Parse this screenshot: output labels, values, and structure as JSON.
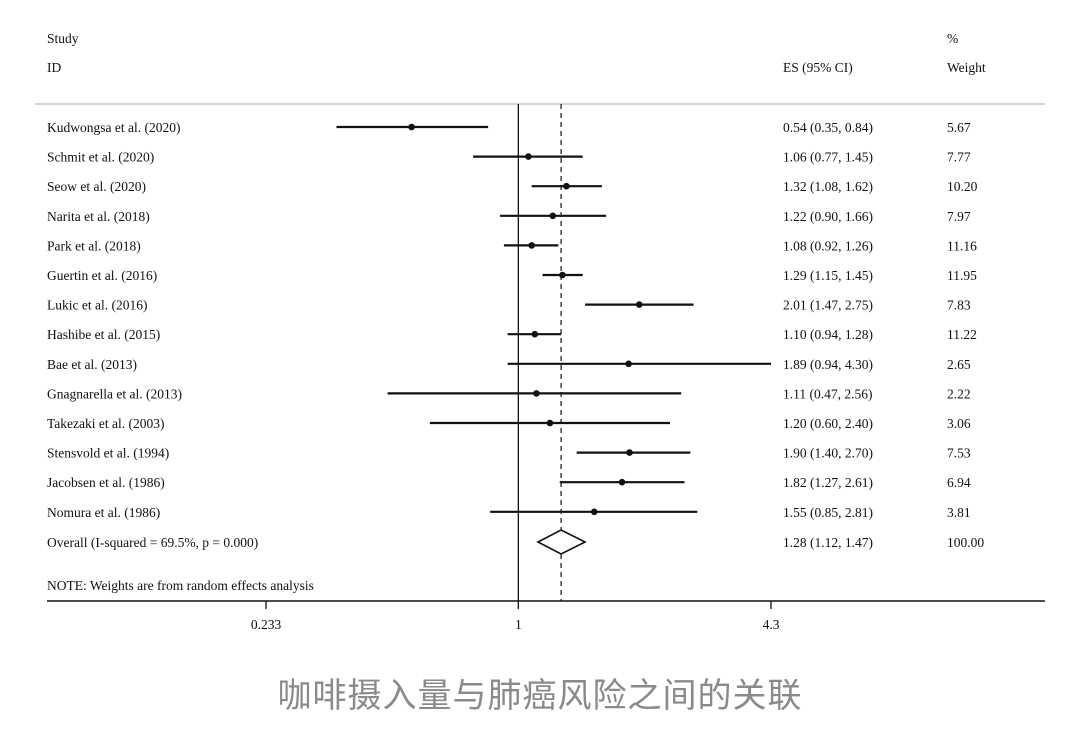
{
  "chart_data": {
    "type": "forest",
    "header": {
      "study_line1": "Study",
      "study_line2": "ID",
      "es_label": "ES (95% CI)",
      "weight_line1": "%",
      "weight_line2": "Weight"
    },
    "studies": [
      {
        "label": "Kudwongsa et al. (2020)",
        "es": 0.54,
        "lo": 0.35,
        "hi": 0.84,
        "es_text": "0.54 (0.35, 0.84)",
        "weight": "5.67"
      },
      {
        "label": "Schmit et al. (2020)",
        "es": 1.06,
        "lo": 0.77,
        "hi": 1.45,
        "es_text": "1.06 (0.77, 1.45)",
        "weight": "7.77"
      },
      {
        "label": "Seow et al. (2020)",
        "es": 1.32,
        "lo": 1.08,
        "hi": 1.62,
        "es_text": "1.32 (1.08, 1.62)",
        "weight": "10.20"
      },
      {
        "label": "Narita et al. (2018)",
        "es": 1.22,
        "lo": 0.9,
        "hi": 1.66,
        "es_text": "1.22 (0.90, 1.66)",
        "weight": "7.97"
      },
      {
        "label": "Park et al. (2018)",
        "es": 1.08,
        "lo": 0.92,
        "hi": 1.26,
        "es_text": "1.08 (0.92, 1.26)",
        "weight": "11.16"
      },
      {
        "label": "Guertin et al. (2016)",
        "es": 1.29,
        "lo": 1.15,
        "hi": 1.45,
        "es_text": "1.29 (1.15, 1.45)",
        "weight": "11.95"
      },
      {
        "label": "Lukic et al. (2016)",
        "es": 2.01,
        "lo": 1.47,
        "hi": 2.75,
        "es_text": "2.01 (1.47, 2.75)",
        "weight": "7.83"
      },
      {
        "label": "Hashibe et al. (2015)",
        "es": 1.1,
        "lo": 0.94,
        "hi": 1.28,
        "es_text": "1.10 (0.94, 1.28)",
        "weight": "11.22"
      },
      {
        "label": "Bae et al. (2013)",
        "es": 1.89,
        "lo": 0.94,
        "hi": 4.3,
        "es_text": "1.89 (0.94, 4.30)",
        "weight": "2.65"
      },
      {
        "label": "Gnagnarella et al. (2013)",
        "es": 1.11,
        "lo": 0.47,
        "hi": 2.56,
        "es_text": "1.11 (0.47, 2.56)",
        "weight": "2.22"
      },
      {
        "label": "Takezaki et al. (2003)",
        "es": 1.2,
        "lo": 0.6,
        "hi": 2.4,
        "es_text": "1.20 (0.60, 2.40)",
        "weight": "3.06"
      },
      {
        "label": "Stensvold et al. (1994)",
        "es": 1.9,
        "lo": 1.4,
        "hi": 2.7,
        "es_text": "1.90 (1.40, 2.70)",
        "weight": "7.53"
      },
      {
        "label": "Jacobsen et al. (1986)",
        "es": 1.82,
        "lo": 1.27,
        "hi": 2.61,
        "es_text": "1.82 (1.27, 2.61)",
        "weight": "6.94"
      },
      {
        "label": "Nomura et al. (1986)",
        "es": 1.55,
        "lo": 0.85,
        "hi": 2.81,
        "es_text": "1.55 (0.85, 2.81)",
        "weight": "3.81"
      }
    ],
    "overall": {
      "label": "Overall  (I-squared = 69.5%, p = 0.000)",
      "es": 1.28,
      "lo": 1.12,
      "hi": 1.47,
      "es_text": "1.28 (1.12, 1.47)",
      "weight": "100.00"
    },
    "note": "NOTE: Weights are from random effects analysis",
    "x_scale": "log",
    "xlim": [
      0.233,
      4.3
    ],
    "null_line": 1,
    "x_ticks": [
      {
        "value": 0.233,
        "label": "0.233"
      },
      {
        "value": 1,
        "label": "1"
      },
      {
        "value": 4.3,
        "label": "4.3"
      }
    ]
  },
  "caption": "咖啡摄入量与肺癌风险之间的关联"
}
